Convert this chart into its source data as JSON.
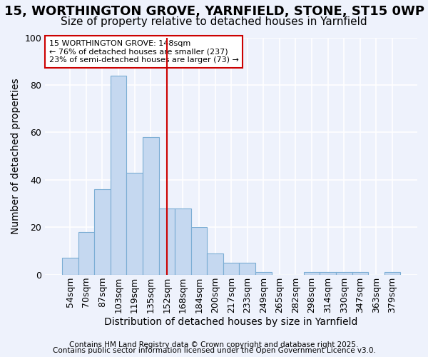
{
  "title1": "15, WORTHINGTON GROVE, YARNFIELD, STONE, ST15 0WP",
  "title2": "Size of property relative to detached houses in Yarnfield",
  "xlabel": "Distribution of detached houses by size in Yarnfield",
  "ylabel": "Number of detached properties",
  "categories": [
    "54sqm",
    "70sqm",
    "87sqm",
    "103sqm",
    "119sqm",
    "135sqm",
    "152sqm",
    "168sqm",
    "184sqm",
    "200sqm",
    "217sqm",
    "233sqm",
    "249sqm",
    "265sqm",
    "282sqm",
    "298sqm",
    "314sqm",
    "330sqm",
    "347sqm",
    "363sqm",
    "379sqm"
  ],
  "values": [
    7,
    18,
    36,
    84,
    43,
    58,
    28,
    28,
    20,
    9,
    5,
    5,
    1,
    0,
    0,
    1,
    1,
    1,
    1,
    0,
    1
  ],
  "bar_color": "#c5d8f0",
  "bar_edge_color": "#7badd4",
  "vline_x_index": 6,
  "vline_color": "#cc0000",
  "annotation_lines": [
    "15 WORTHINGTON GROVE: 148sqm",
    "← 76% of detached houses are smaller (237)",
    "23% of semi-detached houses are larger (73) →"
  ],
  "annotation_box_color": "#cc0000",
  "ylim": [
    0,
    100
  ],
  "yticks": [
    0,
    20,
    40,
    60,
    80,
    100
  ],
  "footer1": "Contains HM Land Registry data © Crown copyright and database right 2025.",
  "footer2": "Contains public sector information licensed under the Open Government Licence v3.0.",
  "background_color": "#eef2fc",
  "grid_color": "#ffffff",
  "title1_fontsize": 13,
  "title2_fontsize": 11,
  "axis_label_fontsize": 10,
  "tick_fontsize": 9,
  "footer_fontsize": 7.5
}
